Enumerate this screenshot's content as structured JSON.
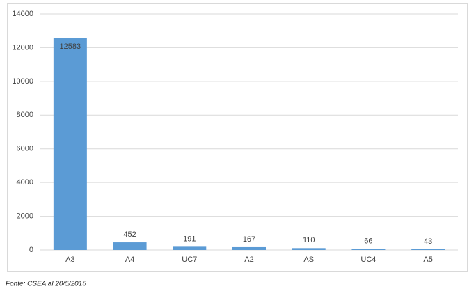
{
  "chart_data": {
    "type": "bar",
    "categories": [
      "A3",
      "A4",
      "UC7",
      "A2",
      "AS",
      "UC4",
      "A5"
    ],
    "values": [
      12583,
      452,
      191,
      167,
      110,
      66,
      43
    ],
    "color": "#5b9bd5",
    "ylim": [
      0,
      14000
    ],
    "yticks": [
      0,
      2000,
      4000,
      6000,
      8000,
      10000,
      12000,
      14000
    ],
    "grid": true,
    "note": "Fonte: CSEA al 20/5/2015"
  }
}
